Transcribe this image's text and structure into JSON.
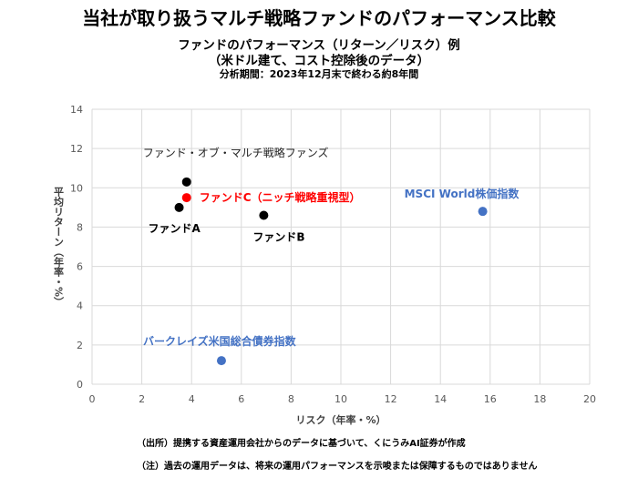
{
  "title": "当社が取り扱うマルチ戦略ファンドのパフォーマンス比較",
  "subtitle1": "ファンドのパフォーマンス（リターン／リスク）例",
  "subtitle2": "（米ドル建て、コスト控除後のデータ）",
  "subtitle3": "分析期間：2023年12月末で終わる約8年間",
  "notes": [
    "（出所）提携する資産運用会社からのデータに基づいて、くにうみAI証券が作成",
    "（注）過去の運用データは、将来の運用パフォーマンスを示唆または保障するものではありません"
  ],
  "chart_data": {
    "type": "scatter",
    "xlabel": "リスク（年率・%）",
    "ylabel": "平均リターン（年率・%）",
    "xlim": [
      0,
      20
    ],
    "ylim": [
      0,
      14
    ],
    "xticks": [
      0,
      2,
      4,
      6,
      8,
      10,
      12,
      14,
      16,
      18,
      20
    ],
    "yticks": [
      0,
      2,
      4,
      6,
      8,
      10,
      12,
      14
    ],
    "grid": true,
    "points": [
      {
        "label": "ファンド・オブ・マルチ戦略ファンズ",
        "x": 3.8,
        "y": 10.3,
        "color": "#000000",
        "labelColor": "#222222"
      },
      {
        "label": "ファンドC（ニッチ戦略重視型）",
        "x": 3.8,
        "y": 9.5,
        "color": "#ff0000",
        "labelColor": "#ff0000"
      },
      {
        "label": "ファンドA",
        "x": 3.5,
        "y": 9.0,
        "color": "#000000",
        "labelColor": "#000000"
      },
      {
        "label": "ファンドB",
        "x": 6.9,
        "y": 8.6,
        "color": "#000000",
        "labelColor": "#000000"
      },
      {
        "label": "MSCI World株価指数",
        "x": 15.7,
        "y": 8.8,
        "color": "#4472c4",
        "labelColor": "#4472c4"
      },
      {
        "label": "バークレイズ米国総合債券指数",
        "x": 5.2,
        "y": 1.2,
        "color": "#4472c4",
        "labelColor": "#4472c4"
      }
    ]
  }
}
